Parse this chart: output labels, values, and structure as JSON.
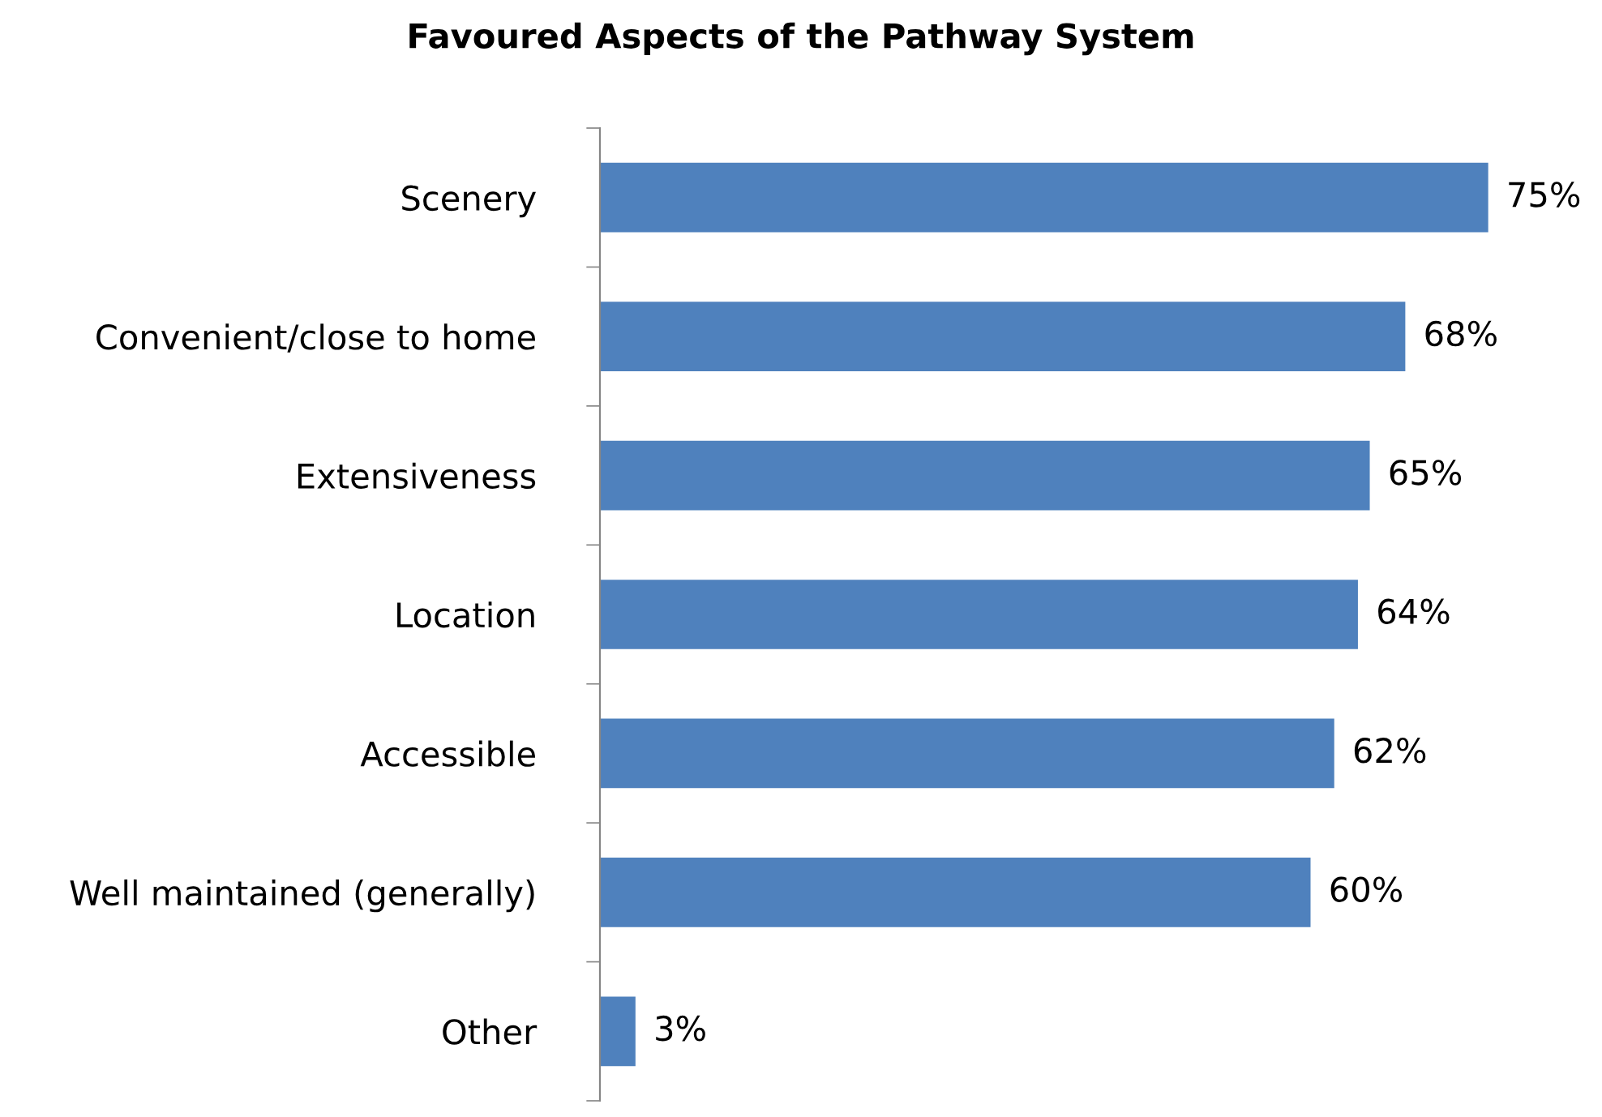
{
  "chart_data": {
    "type": "bar",
    "orientation": "horizontal",
    "title": "Favoured Aspects of the Pathway System",
    "categories": [
      "Scenery",
      "Convenient/close to home",
      "Extensiveness",
      "Location",
      "Accessible",
      "Well maintained (generally)",
      "Other"
    ],
    "values": [
      75,
      68,
      65,
      64,
      62,
      60,
      3
    ],
    "value_labels": [
      "75%",
      "68%",
      "65%",
      "64%",
      "62%",
      "60%",
      "3%"
    ],
    "color": "#4f81bd",
    "tick_labels": "y"
  }
}
